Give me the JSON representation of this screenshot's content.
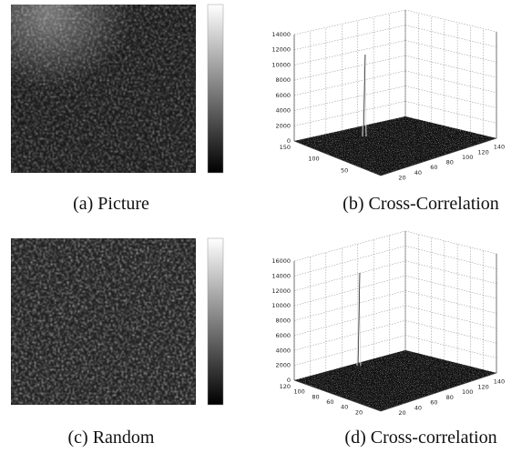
{
  "panels": [
    {
      "caption": "(a) Picture"
    },
    {
      "caption": "(b) Cross-Correlation",
      "zticks": [
        0,
        2000,
        4000,
        6000,
        8000,
        10000,
        12000,
        14000
      ],
      "depth_ticks": [
        150,
        100,
        50
      ],
      "width_ticks": [
        20,
        40,
        60,
        80,
        100,
        120,
        140
      ]
    },
    {
      "caption": "(c) Random"
    },
    {
      "caption": "(d) Cross-correlation",
      "zticks": [
        0,
        2000,
        4000,
        6000,
        8000,
        10000,
        12000,
        14000,
        16000
      ],
      "depth_ticks": [
        120,
        100,
        80,
        60,
        40,
        20
      ],
      "width_ticks": [
        20,
        40,
        60,
        80,
        100,
        120,
        140
      ]
    }
  ]
}
